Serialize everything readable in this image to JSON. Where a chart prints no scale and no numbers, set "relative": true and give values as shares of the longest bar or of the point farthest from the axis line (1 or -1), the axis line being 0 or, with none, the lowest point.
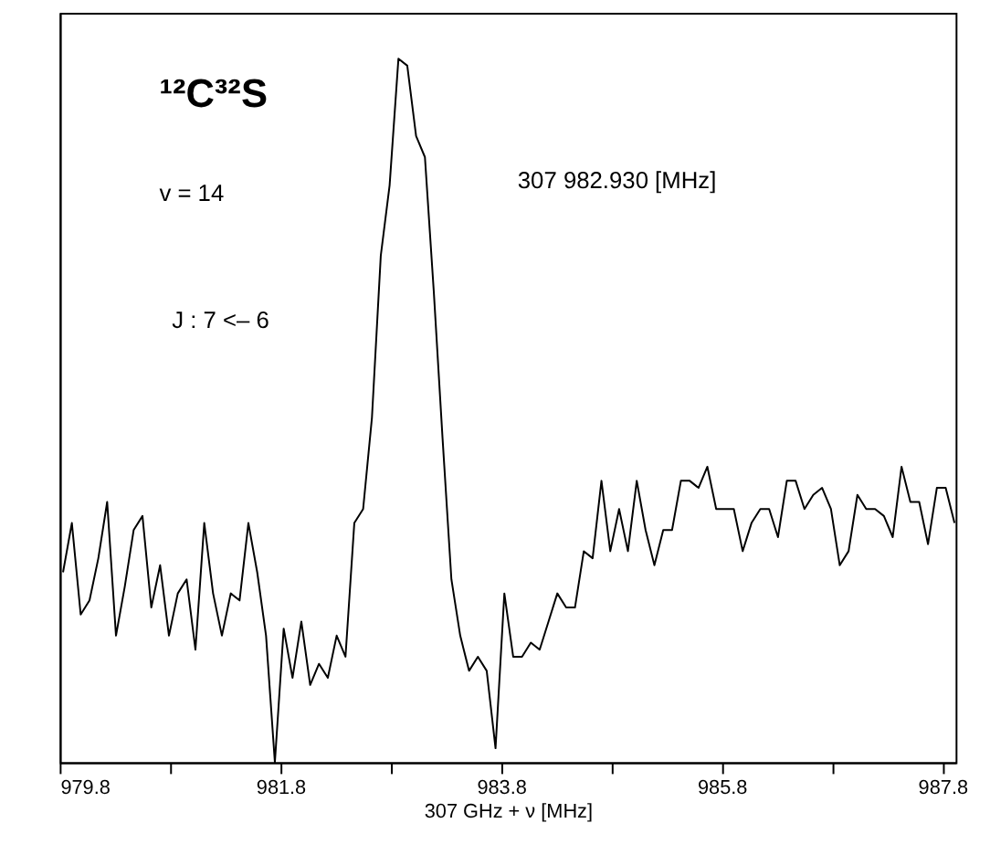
{
  "chart_data": {
    "type": "line",
    "relative": true,
    "xlabel": "307 GHz + ν [MHz]",
    "annotations": [
      "¹²C³²S",
      "v = 14",
      "J : 7 <– 6",
      "307 982.930 [MHz]"
    ],
    "xlim": [
      979.8,
      987.92
    ],
    "xticks": [
      979.8,
      {
        "value": 980.8,
        "label": null
      },
      981.8,
      {
        "value": 982.8,
        "label": null
      },
      983.8,
      {
        "value": 984.8,
        "label": null
      },
      985.8,
      {
        "value": 986.8,
        "label": null
      },
      987.8
    ],
    "tick_labels": "x",
    "grid": false,
    "marker": "none",
    "line_style": "solid",
    "x": [
      979.83,
      979.91,
      979.99,
      980.07,
      980.15,
      980.23,
      980.31,
      980.39,
      980.47,
      980.55,
      980.63,
      980.71,
      980.79,
      980.87,
      980.95,
      981.03,
      981.11,
      981.19,
      981.27,
      981.35,
      981.43,
      981.51,
      981.59,
      981.67,
      981.75,
      981.83,
      981.91,
      981.99,
      982.07,
      982.15,
      982.23,
      982.31,
      982.39,
      982.47,
      982.55,
      982.63,
      982.71,
      982.79,
      982.87,
      982.95,
      983.03,
      983.11,
      983.19,
      983.27,
      983.35,
      983.43,
      983.51,
      983.59,
      983.67,
      983.75,
      983.83,
      983.91,
      983.99,
      984.07,
      984.15,
      984.23,
      984.31,
      984.39,
      984.47,
      984.55,
      984.63,
      984.71,
      984.79,
      984.87,
      984.95,
      985.03,
      985.11,
      985.19,
      985.27,
      985.35,
      985.43,
      985.51,
      985.59,
      985.67,
      985.75,
      985.83,
      985.91,
      985.99,
      986.07,
      986.15,
      986.23,
      986.31,
      986.39,
      986.47,
      986.55,
      986.63,
      986.71,
      986.79,
      986.87,
      986.95,
      987.03,
      987.11,
      987.19,
      987.27,
      987.35,
      987.43,
      987.51,
      987.59,
      987.67,
      987.75,
      987.83,
      987.91
    ],
    "series": [
      {
        "color": "#000000",
        "values": [
          0.27,
          0.34,
          0.21,
          0.23,
          0.29,
          0.37,
          0.18,
          0.25,
          0.33,
          0.35,
          0.22,
          0.28,
          0.18,
          0.24,
          0.26,
          0.16,
          0.34,
          0.24,
          0.18,
          0.24,
          0.23,
          0.34,
          0.27,
          0.18,
          0.0,
          0.19,
          0.12,
          0.2,
          0.11,
          0.14,
          0.12,
          0.18,
          0.15,
          0.34,
          0.36,
          0.49,
          0.72,
          0.82,
          1.0,
          0.99,
          0.89,
          0.86,
          0.67,
          0.46,
          0.26,
          0.18,
          0.13,
          0.15,
          0.13,
          0.02,
          0.24,
          0.15,
          0.15,
          0.17,
          0.16,
          0.2,
          0.24,
          0.22,
          0.22,
          0.3,
          0.29,
          0.4,
          0.3,
          0.36,
          0.3,
          0.4,
          0.33,
          0.28,
          0.33,
          0.33,
          0.4,
          0.4,
          0.39,
          0.42,
          0.36,
          0.36,
          0.36,
          0.3,
          0.34,
          0.36,
          0.36,
          0.32,
          0.4,
          0.4,
          0.36,
          0.38,
          0.39,
          0.36,
          0.28,
          0.3,
          0.38,
          0.36,
          0.36,
          0.35,
          0.32,
          0.42,
          0.37,
          0.37,
          0.31,
          0.39,
          0.39,
          0.34
        ]
      }
    ]
  }
}
